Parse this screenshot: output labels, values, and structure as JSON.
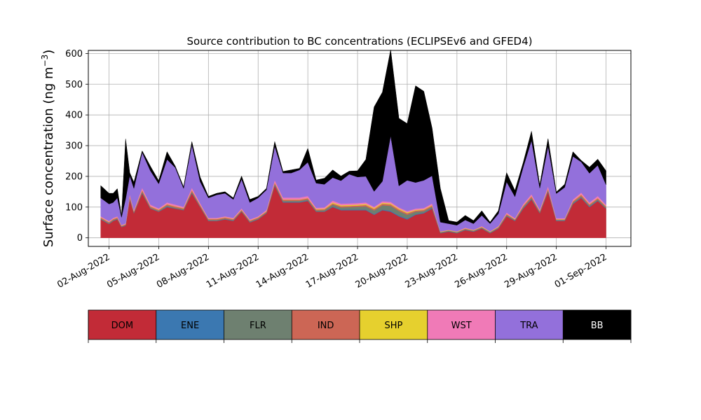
{
  "chart_data": {
    "type": "area",
    "stacked": true,
    "title": "Source contribution to BC concentrations (ECLIPSEv6 and GFED4)",
    "ylabel_main": "Surface concentration (ng m",
    "ylabel_sup": "−3",
    "ylabel_close": ")",
    "ylim": [
      -28,
      610
    ],
    "xlim": [
      "2022-07-31T18:00",
      "2022-09-02T12:00"
    ],
    "y_ticks": [
      0,
      100,
      200,
      300,
      400,
      500,
      600
    ],
    "x_ticks": [
      "02-Aug-2022",
      "05-Aug-2022",
      "08-Aug-2022",
      "11-Aug-2022",
      "14-Aug-2022",
      "17-Aug-2022",
      "20-Aug-2022",
      "23-Aug-2022",
      "26-Aug-2022",
      "29-Aug-2022",
      "01-Sep-2022"
    ],
    "x_tick_dates": [
      "2022-08-02",
      "2022-08-05",
      "2022-08-08",
      "2022-08-11",
      "2022-08-14",
      "2022-08-17",
      "2022-08-20",
      "2022-08-23",
      "2022-08-26",
      "2022-08-29",
      "2022-09-01"
    ],
    "grid": true,
    "x": [
      "2022-08-01T12:00",
      "2022-08-02T00:00",
      "2022-08-02T06:00",
      "2022-08-02T12:00",
      "2022-08-02T18:00",
      "2022-08-03T00:00",
      "2022-08-03T06:00",
      "2022-08-03T12:00",
      "2022-08-04T00:00",
      "2022-08-04T12:00",
      "2022-08-05T00:00",
      "2022-08-05T12:00",
      "2022-08-06T00:00",
      "2022-08-06T12:00",
      "2022-08-07T00:00",
      "2022-08-07T12:00",
      "2022-08-08T00:00",
      "2022-08-08T12:00",
      "2022-08-09T00:00",
      "2022-08-09T12:00",
      "2022-08-10T00:00",
      "2022-08-10T12:00",
      "2022-08-11T00:00",
      "2022-08-11T12:00",
      "2022-08-12T00:00",
      "2022-08-12T12:00",
      "2022-08-13T00:00",
      "2022-08-13T12:00",
      "2022-08-14T00:00",
      "2022-08-14T12:00",
      "2022-08-15T00:00",
      "2022-08-15T12:00",
      "2022-08-16T00:00",
      "2022-08-16T12:00",
      "2022-08-17T00:00",
      "2022-08-17T12:00",
      "2022-08-18T00:00",
      "2022-08-18T12:00",
      "2022-08-19T00:00",
      "2022-08-19T12:00",
      "2022-08-20T00:00",
      "2022-08-20T12:00",
      "2022-08-21T00:00",
      "2022-08-21T12:00",
      "2022-08-22T00:00",
      "2022-08-22T12:00",
      "2022-08-23T00:00",
      "2022-08-23T12:00",
      "2022-08-24T00:00",
      "2022-08-24T12:00",
      "2022-08-25T00:00",
      "2022-08-25T12:00",
      "2022-08-26T00:00",
      "2022-08-26T12:00",
      "2022-08-27T00:00",
      "2022-08-27T12:00",
      "2022-08-28T00:00",
      "2022-08-28T12:00",
      "2022-08-29T00:00",
      "2022-08-29T12:00",
      "2022-08-30T00:00",
      "2022-08-30T12:00",
      "2022-08-31T00:00",
      "2022-08-31T12:00",
      "2022-09-01T00:00"
    ],
    "series": [
      {
        "name": "DOM",
        "color": "#c22b37",
        "values": [
          60,
          45,
          55,
          60,
          35,
          40,
          125,
          80,
          145,
          95,
          85,
          100,
          95,
          90,
          145,
          100,
          55,
          55,
          60,
          55,
          85,
          50,
          60,
          80,
          170,
          115,
          115,
          115,
          120,
          85,
          85,
          100,
          90,
          90,
          90,
          90,
          75,
          90,
          85,
          70,
          60,
          75,
          80,
          95,
          15,
          20,
          15,
          25,
          20,
          30,
          15,
          30,
          70,
          55,
          95,
          125,
          80,
          150,
          55,
          55,
          110,
          130,
          100,
          120,
          95
        ]
      },
      {
        "name": "ENE",
        "color": "#3b78b1",
        "values": [
          1,
          1,
          1,
          1,
          1,
          1,
          2,
          1,
          2,
          1,
          1,
          2,
          1,
          1,
          2,
          1,
          1,
          1,
          1,
          1,
          1,
          1,
          1,
          1,
          2,
          2,
          2,
          2,
          2,
          1,
          1,
          2,
          2,
          2,
          2,
          2,
          2,
          2,
          3,
          3,
          3,
          2,
          2,
          2,
          1,
          1,
          1,
          1,
          1,
          1,
          1,
          1,
          1,
          1,
          2,
          2,
          1,
          2,
          1,
          1,
          2,
          2,
          2,
          2,
          1
        ]
      },
      {
        "name": "FLR",
        "color": "#6e8070",
        "values": [
          2,
          2,
          2,
          2,
          1,
          1,
          3,
          2,
          3,
          2,
          2,
          3,
          2,
          2,
          3,
          2,
          2,
          2,
          2,
          2,
          2,
          2,
          2,
          2,
          3,
          3,
          3,
          3,
          3,
          3,
          4,
          6,
          7,
          8,
          9,
          10,
          12,
          14,
          16,
          14,
          12,
          8,
          5,
          4,
          2,
          2,
          2,
          2,
          2,
          2,
          2,
          2,
          3,
          2,
          3,
          3,
          3,
          3,
          2,
          2,
          3,
          3,
          3,
          3,
          3
        ]
      },
      {
        "name": "IND",
        "color": "#cc6655",
        "values": [
          3,
          3,
          3,
          3,
          2,
          2,
          5,
          3,
          5,
          4,
          3,
          4,
          4,
          3,
          5,
          4,
          3,
          3,
          3,
          3,
          3,
          3,
          3,
          3,
          5,
          4,
          4,
          4,
          4,
          3,
          3,
          4,
          4,
          4,
          4,
          5,
          5,
          5,
          5,
          5,
          5,
          4,
          4,
          4,
          1,
          1,
          1,
          2,
          1,
          2,
          1,
          2,
          3,
          2,
          4,
          5,
          3,
          5,
          2,
          2,
          4,
          5,
          4,
          4,
          3
        ]
      },
      {
        "name": "SHP",
        "color": "#e6d02e",
        "values": [
          1,
          1,
          1,
          1,
          1,
          1,
          1,
          1,
          1,
          1,
          1,
          1,
          1,
          1,
          1,
          1,
          1,
          1,
          1,
          1,
          1,
          1,
          1,
          1,
          1,
          1,
          1,
          1,
          1,
          2,
          2,
          3,
          3,
          3,
          3,
          3,
          3,
          3,
          3,
          3,
          3,
          2,
          2,
          2,
          1,
          1,
          1,
          1,
          1,
          1,
          1,
          1,
          1,
          1,
          1,
          1,
          1,
          1,
          1,
          1,
          1,
          1,
          1,
          1,
          1
        ]
      },
      {
        "name": "WST",
        "color": "#f07ab7",
        "values": [
          3,
          3,
          3,
          3,
          2,
          2,
          6,
          4,
          7,
          5,
          4,
          5,
          5,
          4,
          7,
          5,
          3,
          3,
          3,
          3,
          4,
          3,
          3,
          4,
          7,
          6,
          6,
          6,
          6,
          4,
          4,
          6,
          5,
          5,
          5,
          5,
          4,
          5,
          5,
          4,
          4,
          4,
          4,
          5,
          1,
          1,
          1,
          2,
          1,
          2,
          1,
          2,
          4,
          3,
          5,
          6,
          4,
          7,
          3,
          3,
          5,
          6,
          5,
          6,
          5
        ]
      },
      {
        "name": "TRA",
        "color": "#9370db",
        "values": [
          60,
          55,
          50,
          60,
          25,
          80,
          60,
          70,
          115,
          110,
          80,
          140,
          120,
          60,
          140,
          70,
          65,
          75,
          75,
          60,
          95,
          55,
          60,
          65,
          110,
          80,
          80,
          90,
          110,
          80,
          75,
          75,
          75,
          95,
          85,
          85,
          50,
          65,
          215,
          70,
          100,
          85,
          90,
          90,
          30,
          20,
          20,
          25,
          20,
          35,
          25,
          40,
          100,
          70,
          120,
          175,
          70,
          130,
          80,
          100,
          140,
          100,
          95,
          100,
          65
        ]
      },
      {
        "name": "BB",
        "color": "#000000",
        "values": [
          40,
          35,
          30,
          30,
          5,
          195,
          10,
          20,
          5,
          15,
          10,
          25,
          5,
          5,
          10,
          15,
          5,
          5,
          5,
          5,
          10,
          10,
          5,
          5,
          15,
          5,
          10,
          5,
          45,
          10,
          20,
          25,
          15,
          10,
          20,
          55,
          275,
          290,
          280,
          220,
          185,
          315,
          290,
          155,
          110,
          10,
          10,
          15,
          10,
          15,
          5,
          10,
          30,
          20,
          15,
          30,
          10,
          25,
          5,
          10,
          15,
          5,
          20,
          20,
          45
        ]
      }
    ]
  }
}
